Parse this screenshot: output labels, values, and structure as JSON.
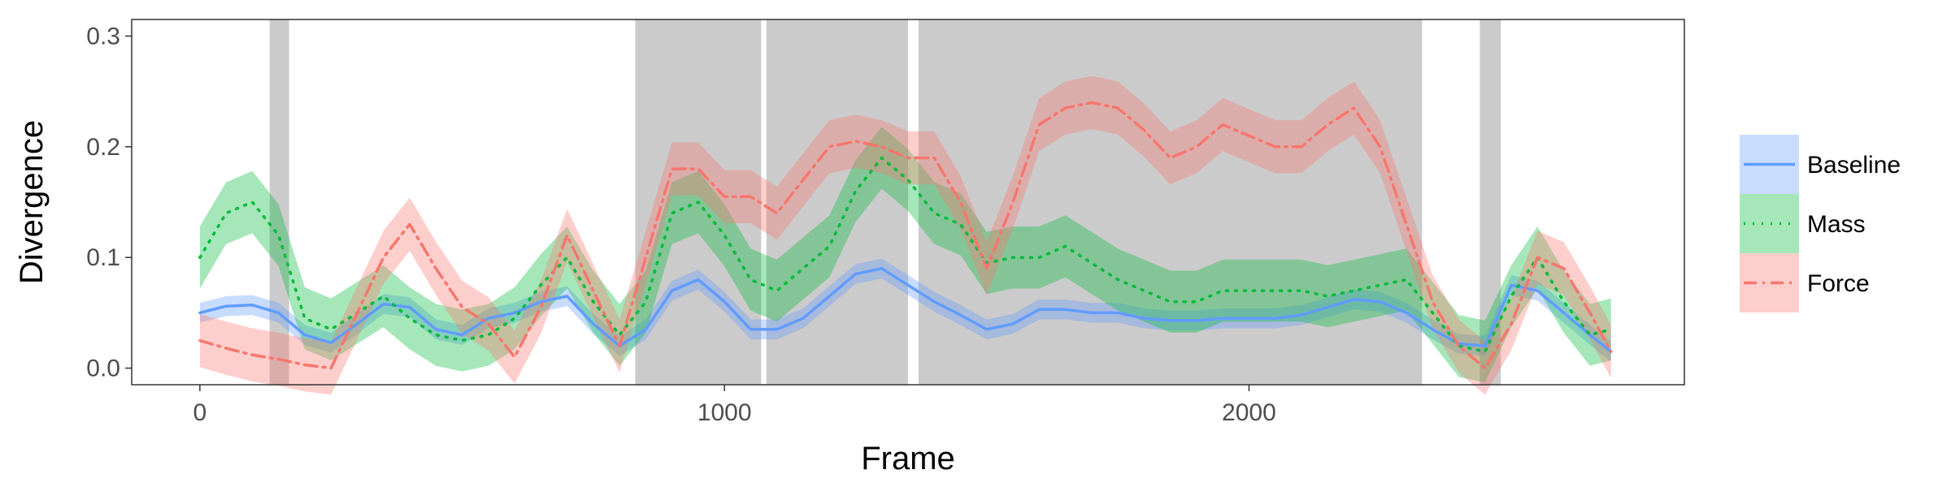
{
  "chart_data": {
    "type": "line",
    "xlabel": "Frame",
    "ylabel": "Divergence",
    "xlim": [
      -130,
      2830
    ],
    "ylim": [
      -0.015,
      0.315
    ],
    "x_ticks": [
      0,
      1000,
      2000
    ],
    "y_ticks": [
      0.0,
      0.1,
      0.2,
      0.3
    ],
    "y_tick_labels": [
      "0.0",
      "0.1",
      "0.2",
      "0.3"
    ],
    "grid": false,
    "legend_position": "right",
    "shaded_regions": [
      [
        133,
        170
      ],
      [
        830,
        1070
      ],
      [
        1080,
        1350
      ],
      [
        1370,
        2330
      ],
      [
        2440,
        2480
      ]
    ],
    "x": [
      0,
      50,
      100,
      150,
      200,
      250,
      300,
      350,
      400,
      450,
      500,
      550,
      600,
      650,
      700,
      750,
      800,
      850,
      900,
      950,
      1000,
      1050,
      1100,
      1150,
      1200,
      1250,
      1300,
      1350,
      1400,
      1450,
      1500,
      1550,
      1600,
      1650,
      1700,
      1750,
      1800,
      1850,
      1900,
      1950,
      2000,
      2050,
      2100,
      2150,
      2200,
      2250,
      2300,
      2350,
      2400,
      2450,
      2500,
      2550,
      2600,
      2650,
      2690
    ],
    "series": [
      {
        "name": "Baseline",
        "color": "#619CFF",
        "dash": "solid",
        "values": [
          0.05,
          0.056,
          0.057,
          0.05,
          0.03,
          0.023,
          0.04,
          0.058,
          0.055,
          0.035,
          0.03,
          0.045,
          0.05,
          0.06,
          0.065,
          0.04,
          0.02,
          0.035,
          0.07,
          0.08,
          0.06,
          0.035,
          0.035,
          0.045,
          0.065,
          0.085,
          0.09,
          0.075,
          0.06,
          0.048,
          0.035,
          0.04,
          0.053,
          0.053,
          0.05,
          0.05,
          0.045,
          0.043,
          0.043,
          0.045,
          0.045,
          0.045,
          0.048,
          0.055,
          0.062,
          0.06,
          0.05,
          0.035,
          0.022,
          0.02,
          0.075,
          0.07,
          0.05,
          0.03,
          0.015
        ],
        "ci": 0.009
      },
      {
        "name": "Mass",
        "color": "#00BA38",
        "dash": "dotted",
        "values": [
          0.1,
          0.14,
          0.15,
          0.12,
          0.045,
          0.035,
          0.05,
          0.065,
          0.045,
          0.03,
          0.025,
          0.03,
          0.045,
          0.075,
          0.1,
          0.06,
          0.03,
          0.06,
          0.14,
          0.15,
          0.12,
          0.08,
          0.07,
          0.09,
          0.11,
          0.16,
          0.19,
          0.17,
          0.14,
          0.13,
          0.095,
          0.1,
          0.1,
          0.11,
          0.095,
          0.08,
          0.07,
          0.06,
          0.06,
          0.07,
          0.07,
          0.07,
          0.07,
          0.065,
          0.07,
          0.075,
          0.08,
          0.05,
          0.02,
          0.015,
          0.065,
          0.1,
          0.06,
          0.03,
          0.035
        ],
        "ci": 0.028
      },
      {
        "name": "Force",
        "color": "#F8766D",
        "dash": "dashdot",
        "values": [
          0.025,
          0.018,
          0.012,
          0.008,
          0.003,
          0.0,
          0.05,
          0.1,
          0.13,
          0.09,
          0.055,
          0.04,
          0.01,
          0.055,
          0.12,
          0.07,
          0.02,
          0.1,
          0.18,
          0.18,
          0.155,
          0.155,
          0.14,
          0.17,
          0.2,
          0.205,
          0.2,
          0.19,
          0.19,
          0.15,
          0.09,
          0.15,
          0.22,
          0.235,
          0.24,
          0.235,
          0.215,
          0.19,
          0.2,
          0.22,
          0.21,
          0.2,
          0.2,
          0.22,
          0.235,
          0.2,
          0.13,
          0.06,
          0.02,
          0.0,
          0.04,
          0.1,
          0.09,
          0.05,
          0.015
        ],
        "ci": 0.024
      }
    ]
  }
}
